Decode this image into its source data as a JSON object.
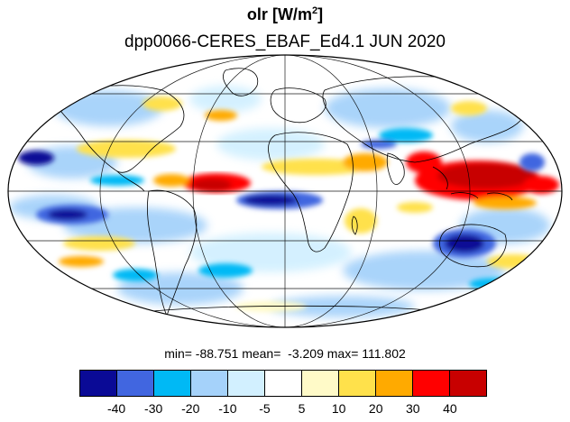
{
  "title": {
    "variable": "olr",
    "units_prefix": "[W/m",
    "units_exp": "2",
    "units_suffix": "]"
  },
  "subtitle": "dpp0066-CERES_EBAF_Ed4.1  JUN 2020",
  "stats": {
    "min": "min= -88.751",
    "mean": "mean=  -3.209",
    "max": "max= 111.802"
  },
  "map": {
    "projection": "mollweide",
    "background": "#ffffff",
    "ocean_note": "",
    "regions": [
      {
        "name": "equatorial-pacific-negative",
        "color": "#1e3cc8"
      },
      {
        "name": "maritime-continent-positive",
        "color": "#d20000"
      },
      {
        "name": "west-africa-positive",
        "color": "#e00000"
      },
      {
        "name": "australia-negative",
        "color": "#0a2aa0"
      }
    ]
  },
  "colorbar": {
    "colors": [
      "#0a0a96",
      "#4166e0",
      "#00b9f5",
      "#a5d2fa",
      "#d2f0ff",
      "#ffffff",
      "#fffac8",
      "#ffe14b",
      "#ffaa00",
      "#ff0000",
      "#c80000"
    ],
    "ticks": [
      "-40",
      "-30",
      "-20",
      "-10",
      "-5",
      "5",
      "10",
      "20",
      "30",
      "40"
    ]
  }
}
